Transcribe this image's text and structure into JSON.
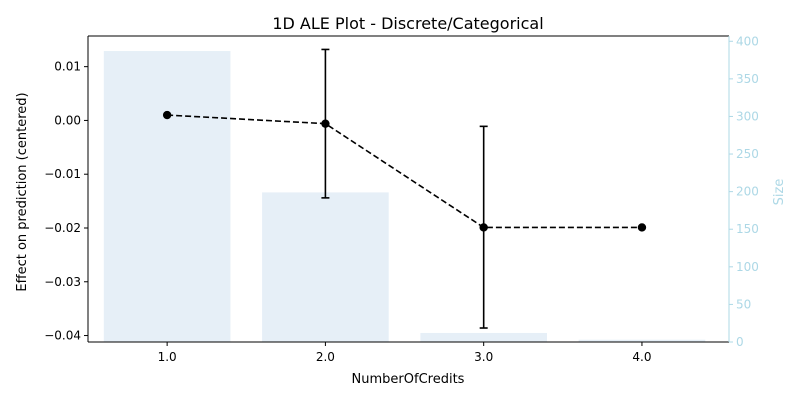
{
  "chart_data": {
    "type": "line",
    "title": "1D ALE Plot - Discrete/Categorical",
    "xlabel": "NumberOfCredits",
    "ylabel": "Effect on prediction (centered)",
    "ylabel_right": "Size",
    "categories": [
      "1.0",
      "2.0",
      "3.0",
      "4.0"
    ],
    "x_tick_labels": [
      "1.0",
      "2.0",
      "3.0",
      "4.0"
    ],
    "ylim": [
      -0.0412,
      0.0157
    ],
    "yticks": [
      0.01,
      0.0,
      -0.01,
      -0.02,
      -0.03,
      -0.04
    ],
    "ytick_labels": [
      "0.01",
      "0.00",
      "−0.01",
      "−0.02",
      "−0.03",
      "−0.04"
    ],
    "ylim_right": [
      0,
      407
    ],
    "yticks_right": [
      0,
      50,
      100,
      150,
      200,
      250,
      300,
      350,
      400
    ],
    "ytick_labels_right": [
      "0",
      "50",
      "100",
      "150",
      "200",
      "250",
      "300",
      "350",
      "400"
    ],
    "series": [
      {
        "kind": "line",
        "values": [
          0.001,
          -0.0006,
          -0.0199,
          -0.0199
        ],
        "error": [
          null,
          [
            -0.0144,
            0.0132
          ],
          [
            -0.0386,
            -0.0011
          ],
          null
        ]
      },
      {
        "kind": "bar",
        "axis": "right",
        "values": [
          387,
          199,
          12,
          3
        ]
      }
    ],
    "colors": {
      "line": "#000000",
      "bar": "#e6eff7",
      "right_axis": "#add8e6"
    },
    "grid": false
  }
}
